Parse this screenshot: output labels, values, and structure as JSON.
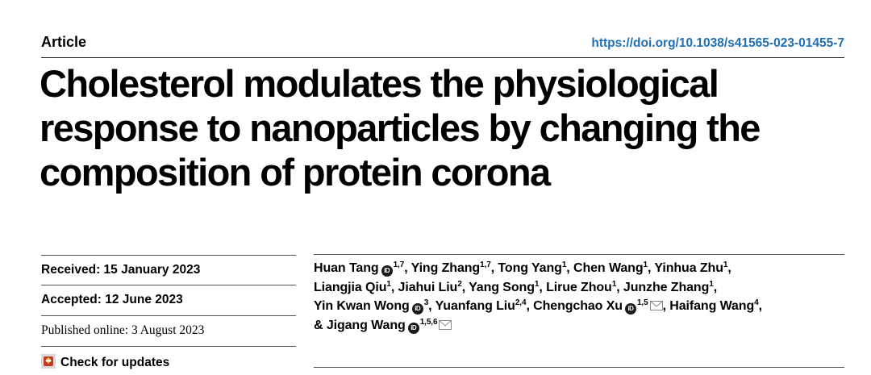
{
  "header": {
    "article_type": "Article",
    "doi": "https://doi.org/10.1038/s41565-023-01455-7"
  },
  "title": "Cholesterol modulates the physiological response to nanoparticles by changing the composition of protein corona",
  "dates": {
    "received": "Received: 15 January 2023",
    "accepted": "Accepted: 12 June 2023",
    "published": "Published online: 3 August 2023",
    "check_updates": "Check for updates"
  },
  "authors": [
    {
      "name": "Huan Tang",
      "orcid": true,
      "sup": "1,7",
      "mail": false
    },
    {
      "name": "Ying Zhang",
      "orcid": false,
      "sup": "1,7",
      "mail": false
    },
    {
      "name": "Tong Yang",
      "orcid": false,
      "sup": "1",
      "mail": false
    },
    {
      "name": "Chen Wang",
      "orcid": false,
      "sup": "1",
      "mail": false
    },
    {
      "name": "Yinhua Zhu",
      "orcid": false,
      "sup": "1",
      "mail": false
    },
    {
      "name": "Liangjia Qiu",
      "orcid": false,
      "sup": "1",
      "mail": false
    },
    {
      "name": "Jiahui Liu",
      "orcid": false,
      "sup": "2",
      "mail": false
    },
    {
      "name": "Yang Song",
      "orcid": false,
      "sup": "1",
      "mail": false
    },
    {
      "name": "Lirue Zhou",
      "orcid": false,
      "sup": "1",
      "mail": false
    },
    {
      "name": "Junzhe Zhang",
      "orcid": false,
      "sup": "1",
      "mail": false
    },
    {
      "name": "Yin Kwan Wong",
      "orcid": true,
      "sup": "3",
      "mail": false
    },
    {
      "name": "Yuanfang Liu",
      "orcid": false,
      "sup": "2,4",
      "mail": false
    },
    {
      "name": "Chengchao Xu",
      "orcid": true,
      "sup": "1,5",
      "mail": true
    },
    {
      "name": "Haifang Wang",
      "orcid": false,
      "sup": "4",
      "mail": false
    },
    {
      "name": "Jigang Wang",
      "orcid": true,
      "sup": "1,5,6",
      "mail": true
    }
  ],
  "colors": {
    "link": "#1f6fb5",
    "text": "#000000"
  },
  "icons": {
    "orcid": "orcid-icon",
    "mail": "mail-icon",
    "updates": "check-for-updates-icon"
  }
}
